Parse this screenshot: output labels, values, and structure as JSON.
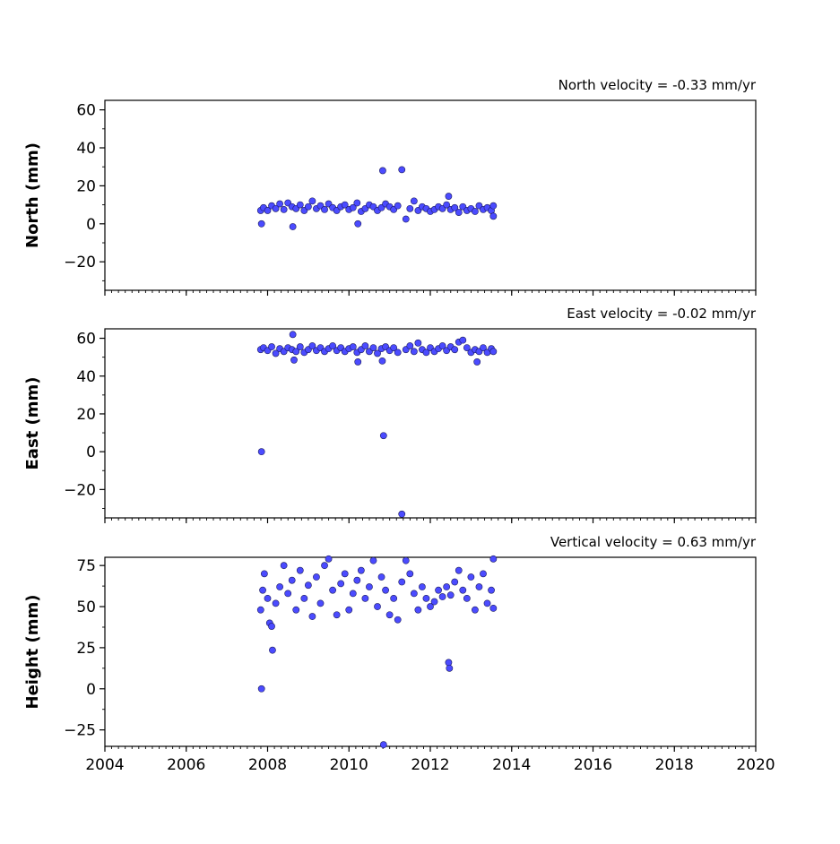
{
  "chart_data": {
    "type": "scatter",
    "x_axis": {
      "range": [
        2004,
        2020
      ],
      "ticks": [
        2004,
        2006,
        2008,
        2010,
        2012,
        2014,
        2016,
        2018,
        2020
      ],
      "minor_step_years": 0.1667
    },
    "marker_color": "#4b4bff",
    "marker_edge_color": "#1c1c60",
    "grid": false,
    "panels": [
      {
        "key": "north",
        "title": "North velocity = -0.33 mm/yr",
        "ylabel": "North (mm)",
        "ylim": [
          -35,
          65
        ],
        "yticks": [
          -20,
          0,
          20,
          40,
          60
        ],
        "points": [
          [
            2007.83,
            7.0
          ],
          [
            2007.85,
            0.0
          ],
          [
            2007.9,
            8.5
          ],
          [
            2008.0,
            7.0
          ],
          [
            2008.1,
            9.5
          ],
          [
            2008.2,
            8.0
          ],
          [
            2008.3,
            10.5
          ],
          [
            2008.4,
            7.5
          ],
          [
            2008.5,
            11.0
          ],
          [
            2008.6,
            9.0
          ],
          [
            2008.62,
            -1.5
          ],
          [
            2008.7,
            8.0
          ],
          [
            2008.8,
            10.0
          ],
          [
            2008.9,
            7.0
          ],
          [
            2009.0,
            9.0
          ],
          [
            2009.1,
            12.0
          ],
          [
            2009.2,
            8.0
          ],
          [
            2009.3,
            9.5
          ],
          [
            2009.4,
            7.5
          ],
          [
            2009.5,
            10.5
          ],
          [
            2009.6,
            8.5
          ],
          [
            2009.7,
            7.0
          ],
          [
            2009.8,
            9.0
          ],
          [
            2009.9,
            10.0
          ],
          [
            2010.0,
            7.5
          ],
          [
            2010.1,
            8.5
          ],
          [
            2010.2,
            11.0
          ],
          [
            2010.22,
            0.0
          ],
          [
            2010.3,
            6.5
          ],
          [
            2010.4,
            8.0
          ],
          [
            2010.5,
            10.0
          ],
          [
            2010.6,
            9.0
          ],
          [
            2010.7,
            7.0
          ],
          [
            2010.8,
            8.5
          ],
          [
            2010.83,
            28.0
          ],
          [
            2010.9,
            10.5
          ],
          [
            2011.0,
            9.0
          ],
          [
            2011.1,
            7.5
          ],
          [
            2011.2,
            9.5
          ],
          [
            2011.3,
            28.5
          ],
          [
            2011.4,
            2.5
          ],
          [
            2011.5,
            8.0
          ],
          [
            2011.6,
            12.0
          ],
          [
            2011.7,
            7.0
          ],
          [
            2011.8,
            9.0
          ],
          [
            2011.9,
            8.0
          ],
          [
            2012.0,
            6.5
          ],
          [
            2012.1,
            7.5
          ],
          [
            2012.2,
            9.0
          ],
          [
            2012.3,
            8.0
          ],
          [
            2012.4,
            10.0
          ],
          [
            2012.45,
            14.5
          ],
          [
            2012.5,
            7.5
          ],
          [
            2012.6,
            8.5
          ],
          [
            2012.7,
            6.0
          ],
          [
            2012.8,
            9.0
          ],
          [
            2012.9,
            7.0
          ],
          [
            2013.0,
            8.0
          ],
          [
            2013.1,
            6.5
          ],
          [
            2013.2,
            9.5
          ],
          [
            2013.3,
            7.5
          ],
          [
            2013.4,
            8.5
          ],
          [
            2013.5,
            7.0
          ],
          [
            2013.55,
            4.0
          ],
          [
            2013.55,
            9.5
          ]
        ]
      },
      {
        "key": "east",
        "title": "East velocity = -0.02 mm/yr",
        "ylabel": "East (mm)",
        "ylim": [
          -35,
          65
        ],
        "yticks": [
          -20,
          0,
          20,
          40,
          60
        ],
        "points": [
          [
            2007.83,
            54.0
          ],
          [
            2007.85,
            0.0
          ],
          [
            2007.9,
            55.0
          ],
          [
            2008.0,
            53.5
          ],
          [
            2008.1,
            55.5
          ],
          [
            2008.2,
            52.0
          ],
          [
            2008.3,
            54.5
          ],
          [
            2008.4,
            53.0
          ],
          [
            2008.5,
            55.0
          ],
          [
            2008.6,
            54.0
          ],
          [
            2008.62,
            62.0
          ],
          [
            2008.65,
            48.5
          ],
          [
            2008.7,
            53.0
          ],
          [
            2008.8,
            55.5
          ],
          [
            2008.9,
            52.5
          ],
          [
            2009.0,
            54.0
          ],
          [
            2009.1,
            56.0
          ],
          [
            2009.2,
            53.5
          ],
          [
            2009.3,
            55.0
          ],
          [
            2009.4,
            53.0
          ],
          [
            2009.5,
            54.5
          ],
          [
            2009.6,
            56.0
          ],
          [
            2009.7,
            53.5
          ],
          [
            2009.8,
            55.0
          ],
          [
            2009.9,
            53.0
          ],
          [
            2010.0,
            54.5
          ],
          [
            2010.1,
            55.5
          ],
          [
            2010.2,
            52.5
          ],
          [
            2010.22,
            47.5
          ],
          [
            2010.3,
            54.0
          ],
          [
            2010.4,
            56.0
          ],
          [
            2010.5,
            53.0
          ],
          [
            2010.6,
            55.0
          ],
          [
            2010.7,
            52.0
          ],
          [
            2010.8,
            54.5
          ],
          [
            2010.82,
            48.0
          ],
          [
            2010.85,
            8.5
          ],
          [
            2010.9,
            55.5
          ],
          [
            2011.0,
            53.5
          ],
          [
            2011.1,
            55.0
          ],
          [
            2011.2,
            52.5
          ],
          [
            2011.3,
            -33.0
          ],
          [
            2011.4,
            54.0
          ],
          [
            2011.5,
            56.0
          ],
          [
            2011.6,
            53.0
          ],
          [
            2011.7,
            57.5
          ],
          [
            2011.8,
            54.0
          ],
          [
            2011.9,
            52.5
          ],
          [
            2012.0,
            55.0
          ],
          [
            2012.1,
            53.0
          ],
          [
            2012.2,
            54.5
          ],
          [
            2012.3,
            56.0
          ],
          [
            2012.4,
            53.5
          ],
          [
            2012.5,
            55.5
          ],
          [
            2012.6,
            54.0
          ],
          [
            2012.7,
            58.0
          ],
          [
            2012.8,
            59.0
          ],
          [
            2012.9,
            55.0
          ],
          [
            2013.0,
            52.5
          ],
          [
            2013.1,
            54.0
          ],
          [
            2013.15,
            47.5
          ],
          [
            2013.2,
            53.0
          ],
          [
            2013.3,
            55.0
          ],
          [
            2013.4,
            52.5
          ],
          [
            2013.5,
            54.5
          ],
          [
            2013.55,
            53.0
          ]
        ]
      },
      {
        "key": "height",
        "title": "Vertical velocity = 0.63 mm/yr",
        "ylabel": "Height (mm)",
        "ylim": [
          -35,
          80
        ],
        "yticks": [
          -25,
          0,
          25,
          50,
          75
        ],
        "points": [
          [
            2007.83,
            48.0
          ],
          [
            2007.85,
            0.0
          ],
          [
            2007.88,
            60.0
          ],
          [
            2007.92,
            70.0
          ],
          [
            2008.0,
            55.0
          ],
          [
            2008.05,
            40.0
          ],
          [
            2008.1,
            38.0
          ],
          [
            2008.12,
            23.5
          ],
          [
            2008.2,
            52.0
          ],
          [
            2008.3,
            62.0
          ],
          [
            2008.4,
            75.0
          ],
          [
            2008.5,
            58.0
          ],
          [
            2008.6,
            66.0
          ],
          [
            2008.7,
            48.0
          ],
          [
            2008.8,
            72.0
          ],
          [
            2008.9,
            55.0
          ],
          [
            2009.0,
            63.0
          ],
          [
            2009.1,
            44.0
          ],
          [
            2009.2,
            68.0
          ],
          [
            2009.3,
            52.0
          ],
          [
            2009.4,
            75.0
          ],
          [
            2009.5,
            79.0
          ],
          [
            2009.6,
            60.0
          ],
          [
            2009.7,
            45.0
          ],
          [
            2009.8,
            64.0
          ],
          [
            2009.9,
            70.0
          ],
          [
            2010.0,
            48.0
          ],
          [
            2010.1,
            58.0
          ],
          [
            2010.2,
            66.0
          ],
          [
            2010.3,
            72.0
          ],
          [
            2010.4,
            55.0
          ],
          [
            2010.5,
            62.0
          ],
          [
            2010.6,
            78.0
          ],
          [
            2010.7,
            50.0
          ],
          [
            2010.8,
            68.0
          ],
          [
            2010.85,
            -34.0
          ],
          [
            2010.9,
            60.0
          ],
          [
            2011.0,
            45.0
          ],
          [
            2011.1,
            55.0
          ],
          [
            2011.2,
            42.0
          ],
          [
            2011.3,
            65.0
          ],
          [
            2011.4,
            78.0
          ],
          [
            2011.5,
            70.0
          ],
          [
            2011.6,
            58.0
          ],
          [
            2011.7,
            48.0
          ],
          [
            2011.8,
            62.0
          ],
          [
            2011.9,
            55.0
          ],
          [
            2012.0,
            50.0
          ],
          [
            2012.1,
            53.0
          ],
          [
            2012.2,
            60.0
          ],
          [
            2012.3,
            56.0
          ],
          [
            2012.4,
            62.0
          ],
          [
            2012.45,
            16.0
          ],
          [
            2012.47,
            12.5
          ],
          [
            2012.5,
            57.0
          ],
          [
            2012.6,
            65.0
          ],
          [
            2012.7,
            72.0
          ],
          [
            2012.8,
            60.0
          ],
          [
            2012.9,
            55.0
          ],
          [
            2013.0,
            68.0
          ],
          [
            2013.1,
            48.0
          ],
          [
            2013.2,
            62.0
          ],
          [
            2013.3,
            70.0
          ],
          [
            2013.4,
            52.0
          ],
          [
            2013.5,
            60.0
          ],
          [
            2013.55,
            79.0
          ],
          [
            2013.55,
            49.0
          ]
        ]
      }
    ]
  }
}
